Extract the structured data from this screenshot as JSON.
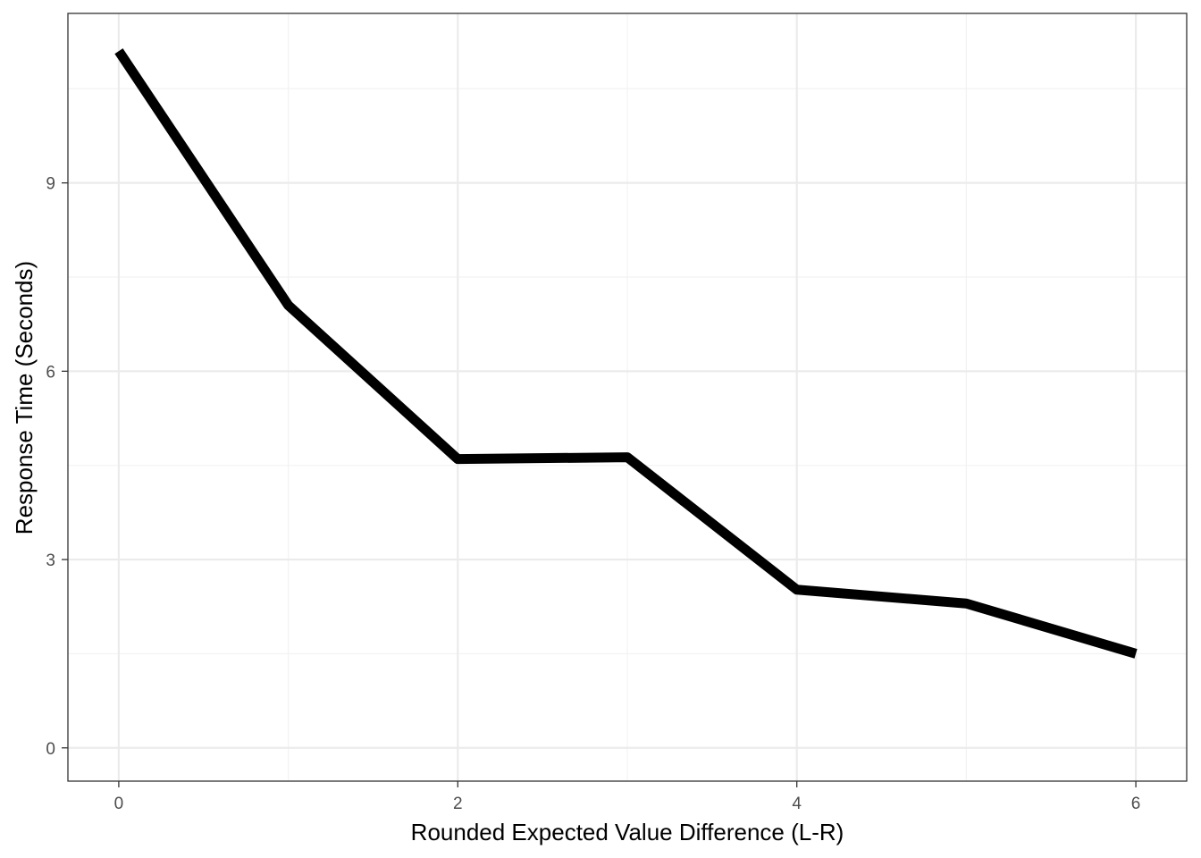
{
  "chart_data": {
    "type": "line",
    "title": "",
    "xlabel": "Rounded Expected Value Difference (L-R)",
    "ylabel": "Response Time (Seconds)",
    "x": [
      0,
      1,
      2,
      3,
      4,
      5,
      6
    ],
    "series": [
      {
        "values": [
          11.1,
          7.05,
          4.6,
          4.63,
          2.52,
          2.3,
          1.5
        ]
      }
    ],
    "xlim": [
      -0.3,
      6.3
    ],
    "ylim": [
      -0.53,
      11.7
    ],
    "xticks": [
      0,
      2,
      4,
      6
    ],
    "yticks": [
      0,
      3,
      6,
      9
    ],
    "x_minor_grid": [
      1,
      3,
      5
    ],
    "y_minor_grid": [
      1.5,
      4.5,
      7.5,
      10.5
    ],
    "grid": true,
    "legend": "none",
    "colors": {
      "line": "#000000",
      "grid_major": "#ebebeb",
      "grid_minor": "#f2f2f2",
      "panel_border": "#333333",
      "tick_text": "#4d4d4d"
    }
  }
}
